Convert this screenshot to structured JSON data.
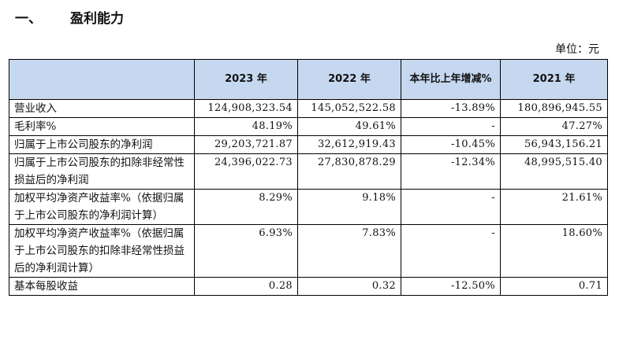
{
  "section": {
    "number": "一、",
    "title": "盈利能力"
  },
  "unit_text": "单位：元",
  "table": {
    "header_bg": "#c6d8f0",
    "columns": [
      "",
      "2023 年",
      "2022 年",
      "本年比上年增减%",
      "2021 年"
    ],
    "rows": [
      {
        "label": "营业收入",
        "values": [
          "124,908,323.54",
          "145,052,522.58",
          "-13.89%",
          "180,896,945.55"
        ]
      },
      {
        "label": "毛利率%",
        "values": [
          "48.19%",
          "49.61%",
          "-",
          "47.27%"
        ]
      },
      {
        "label": "归属于上市公司股东的净利润",
        "values": [
          "29,203,721.87",
          "32,612,919.43",
          "-10.45%",
          "56,943,156.21"
        ]
      },
      {
        "label": "归属于上市公司股东的扣除非经常性损益后的净利润",
        "values": [
          "24,396,022.73",
          "27,830,878.29",
          "-12.34%",
          "48,995,515.40"
        ]
      },
      {
        "label": "加权平均净资产收益率%（依据归属于上市公司股东的净利润计算）",
        "values": [
          "8.29%",
          "9.18%",
          "-",
          "21.61%"
        ]
      },
      {
        "label": "加权平均净资产收益率%（依据归属于上市公司股东的扣除非经常性损益后的净利润计算）",
        "values": [
          "6.93%",
          "7.83%",
          "-",
          "18.60%"
        ]
      },
      {
        "label": "基本每股收益",
        "values": [
          "0.28",
          "0.32",
          "-12.50%",
          "0.71"
        ]
      }
    ]
  }
}
